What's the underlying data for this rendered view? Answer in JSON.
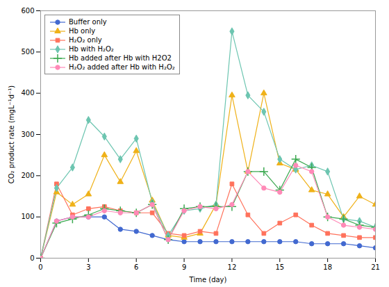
{
  "chart_data": {
    "type": "line",
    "xlabel": "Time (day)",
    "ylabel": "CO₂ product rate (mgL⁻¹d⁻¹)",
    "xlim": [
      0,
      21
    ],
    "ylim": [
      0,
      600
    ],
    "xticks": [
      0,
      3,
      6,
      9,
      12,
      15,
      18,
      21
    ],
    "yticks": [
      0,
      100,
      200,
      300,
      400,
      500,
      600
    ],
    "grid": false,
    "legend": "upper left",
    "x": [
      0,
      1,
      2,
      3,
      4,
      5,
      6,
      7,
      8,
      9,
      10,
      11,
      12,
      13,
      14,
      15,
      16,
      17,
      18,
      19,
      20,
      21
    ],
    "series": [
      {
        "name": "Buffer only",
        "marker": "circle",
        "values": [
          0,
          90,
          100,
          100,
          100,
          70,
          65,
          55,
          45,
          40,
          40,
          40,
          40,
          40,
          40,
          40,
          40,
          35,
          35,
          35,
          30,
          25
        ]
      },
      {
        "name": "Hb only",
        "marker": "triangle",
        "values": [
          0,
          160,
          130,
          155,
          250,
          185,
          260,
          140,
          55,
          50,
          60,
          130,
          395,
          210,
          400,
          230,
          215,
          165,
          155,
          100,
          150,
          130
        ]
      },
      {
        "name": "H₂O₂ only",
        "marker": "square",
        "values": [
          0,
          180,
          105,
          120,
          125,
          115,
          110,
          110,
          60,
          55,
          65,
          60,
          180,
          105,
          60,
          85,
          105,
          80,
          60,
          55,
          50,
          50
        ]
      },
      {
        "name": "Hb with H₂O₂",
        "marker": "diamond",
        "values": [
          0,
          170,
          220,
          335,
          295,
          240,
          290,
          135,
          55,
          115,
          120,
          130,
          550,
          395,
          355,
          240,
          215,
          225,
          210,
          95,
          90,
          75
        ]
      },
      {
        "name": "Hb added after Hb with H2O2",
        "marker": "plus",
        "values": [
          0,
          85,
          95,
          105,
          120,
          115,
          110,
          130,
          45,
          120,
          125,
          125,
          125,
          210,
          210,
          165,
          240,
          220,
          100,
          95,
          80,
          75
        ]
      },
      {
        "name": "H₂O₂ added after Hb with H₂O₂",
        "marker": "circle",
        "values": [
          0,
          90,
          100,
          100,
          115,
          110,
          110,
          130,
          45,
          115,
          125,
          120,
          130,
          210,
          170,
          160,
          225,
          210,
          100,
          80,
          75,
          70
        ]
      }
    ]
  }
}
